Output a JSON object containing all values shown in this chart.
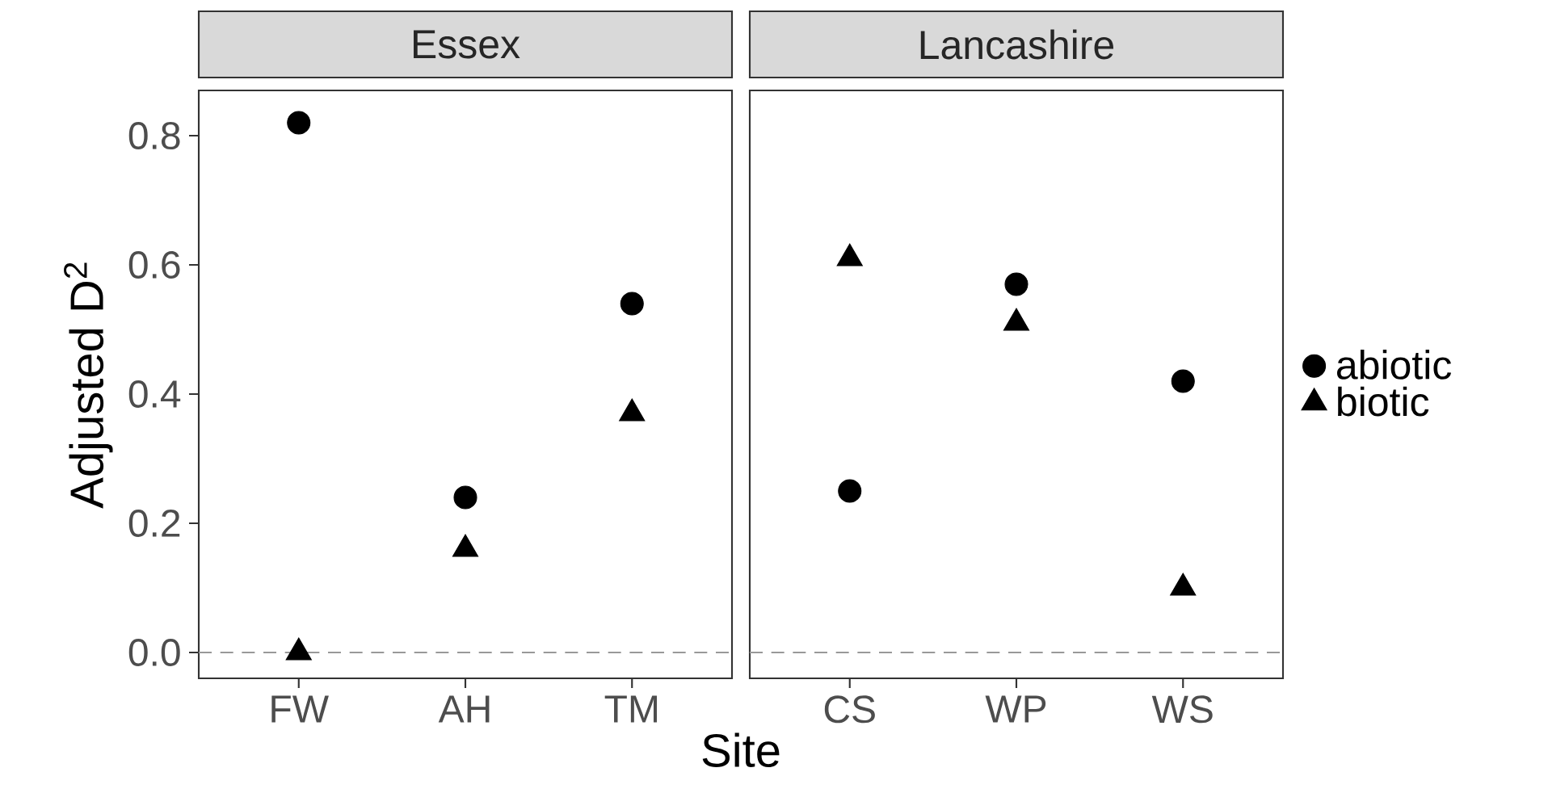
{
  "chart_data": [
    {
      "type": "scatter",
      "title": "Essex",
      "categories": [
        "FW",
        "AH",
        "TM"
      ],
      "xlabel": "Site",
      "ylabel": "Adjusted D$^{2}$",
      "series": [
        {
          "color": "#000000",
          "marker": "circle",
          "values": [
            0.82,
            0.24,
            0.54
          ]
        },
        {
          "color": "#000000",
          "marker": "triangle",
          "values": [
            0.0,
            0.16,
            0.37
          ]
        }
      ],
      "ylim": [
        -0.04,
        0.87
      ],
      "yticks": [
        {
          "value": 0,
          "label": "0.0"
        },
        0.2,
        0.4,
        0.6,
        0.8
      ],
      "ref_lines": [
        {
          "axis": "y",
          "value": 0,
          "color": "#999999",
          "line_style": "dashed"
        }
      ]
    },
    {
      "type": "scatter",
      "title": "Lancashire",
      "categories": [
        "CS",
        "WP",
        "WS"
      ],
      "series": [
        {
          "name": "abiotic",
          "color": "#000000",
          "marker": "circle",
          "values": [
            0.25,
            0.57,
            0.42
          ]
        },
        {
          "name": "biotic",
          "color": "#000000",
          "marker": "triangle",
          "values": [
            0.61,
            0.51,
            0.1
          ]
        }
      ],
      "ylim": [
        -0.04,
        0.87
      ],
      "tick_labels": "x",
      "legend": "right",
      "ref_lines": [
        {
          "axis": "y",
          "value": 0,
          "color": "#999999",
          "line_style": "dashed"
        }
      ]
    }
  ]
}
